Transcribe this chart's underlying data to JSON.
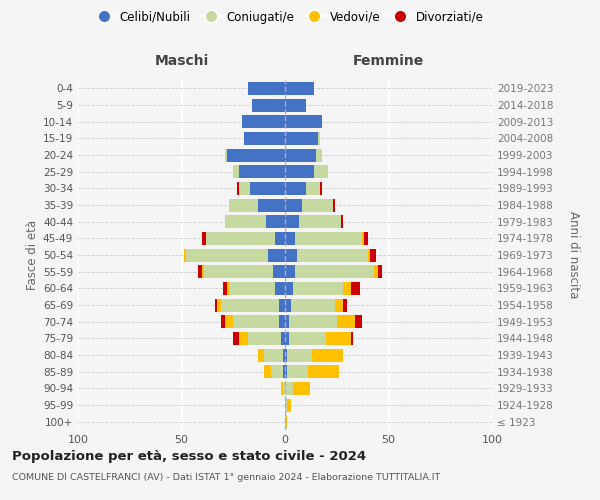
{
  "age_groups": [
    "100+",
    "95-99",
    "90-94",
    "85-89",
    "80-84",
    "75-79",
    "70-74",
    "65-69",
    "60-64",
    "55-59",
    "50-54",
    "45-49",
    "40-44",
    "35-39",
    "30-34",
    "25-29",
    "20-24",
    "15-19",
    "10-14",
    "5-9",
    "0-4"
  ],
  "birth_years": [
    "≤ 1923",
    "1924-1928",
    "1929-1933",
    "1934-1938",
    "1939-1943",
    "1944-1948",
    "1949-1953",
    "1954-1958",
    "1959-1963",
    "1964-1968",
    "1969-1973",
    "1974-1978",
    "1979-1983",
    "1984-1988",
    "1989-1993",
    "1994-1998",
    "1999-2003",
    "2004-2008",
    "2009-2013",
    "2014-2018",
    "2019-2023"
  ],
  "colors": {
    "celibi": "#4472c4",
    "coniugati": "#c5d9a0",
    "vedovi": "#ffc000",
    "divorziati": "#cc0000"
  },
  "maschi": {
    "celibi": [
      0,
      0,
      0,
      1,
      1,
      2,
      3,
      3,
      5,
      6,
      8,
      5,
      9,
      13,
      17,
      22,
      28,
      20,
      21,
      16,
      18
    ],
    "coniugati": [
      0,
      0,
      1,
      6,
      9,
      16,
      22,
      28,
      22,
      33,
      40,
      33,
      20,
      14,
      5,
      3,
      1,
      0,
      0,
      0,
      0
    ],
    "vedovi": [
      0,
      0,
      1,
      3,
      3,
      4,
      4,
      2,
      1,
      1,
      1,
      0,
      0,
      0,
      0,
      0,
      0,
      0,
      0,
      0,
      0
    ],
    "divorziati": [
      0,
      0,
      0,
      0,
      0,
      3,
      2,
      1,
      2,
      2,
      0,
      2,
      0,
      0,
      1,
      0,
      0,
      0,
      0,
      0,
      0
    ]
  },
  "femmine": {
    "celibi": [
      0,
      0,
      0,
      1,
      1,
      2,
      2,
      3,
      4,
      5,
      6,
      5,
      7,
      8,
      10,
      14,
      15,
      16,
      18,
      10,
      14
    ],
    "coniugati": [
      0,
      1,
      4,
      10,
      12,
      18,
      23,
      21,
      24,
      38,
      34,
      32,
      20,
      15,
      7,
      7,
      3,
      1,
      0,
      0,
      0
    ],
    "vedovi": [
      1,
      2,
      8,
      15,
      15,
      12,
      9,
      4,
      4,
      2,
      1,
      1,
      0,
      0,
      0,
      0,
      0,
      0,
      0,
      0,
      0
    ],
    "divorziati": [
      0,
      0,
      0,
      0,
      0,
      1,
      3,
      2,
      4,
      2,
      3,
      2,
      1,
      1,
      1,
      0,
      0,
      0,
      0,
      0,
      0
    ]
  },
  "xlim": 100,
  "title": "Popolazione per età, sesso e stato civile - 2024",
  "subtitle": "COMUNE DI CASTELFRANCI (AV) - Dati ISTAT 1° gennaio 2024 - Elaborazione TUTTITALIA.IT",
  "ylabel_left": "Fasce di età",
  "ylabel_right": "Anni di nascita",
  "xlabel_left": "Maschi",
  "xlabel_right": "Femmine",
  "legend_labels": [
    "Celibi/Nubili",
    "Coniugati/e",
    "Vedovi/e",
    "Divorziati/e"
  ],
  "background_color": "#f5f5f5"
}
